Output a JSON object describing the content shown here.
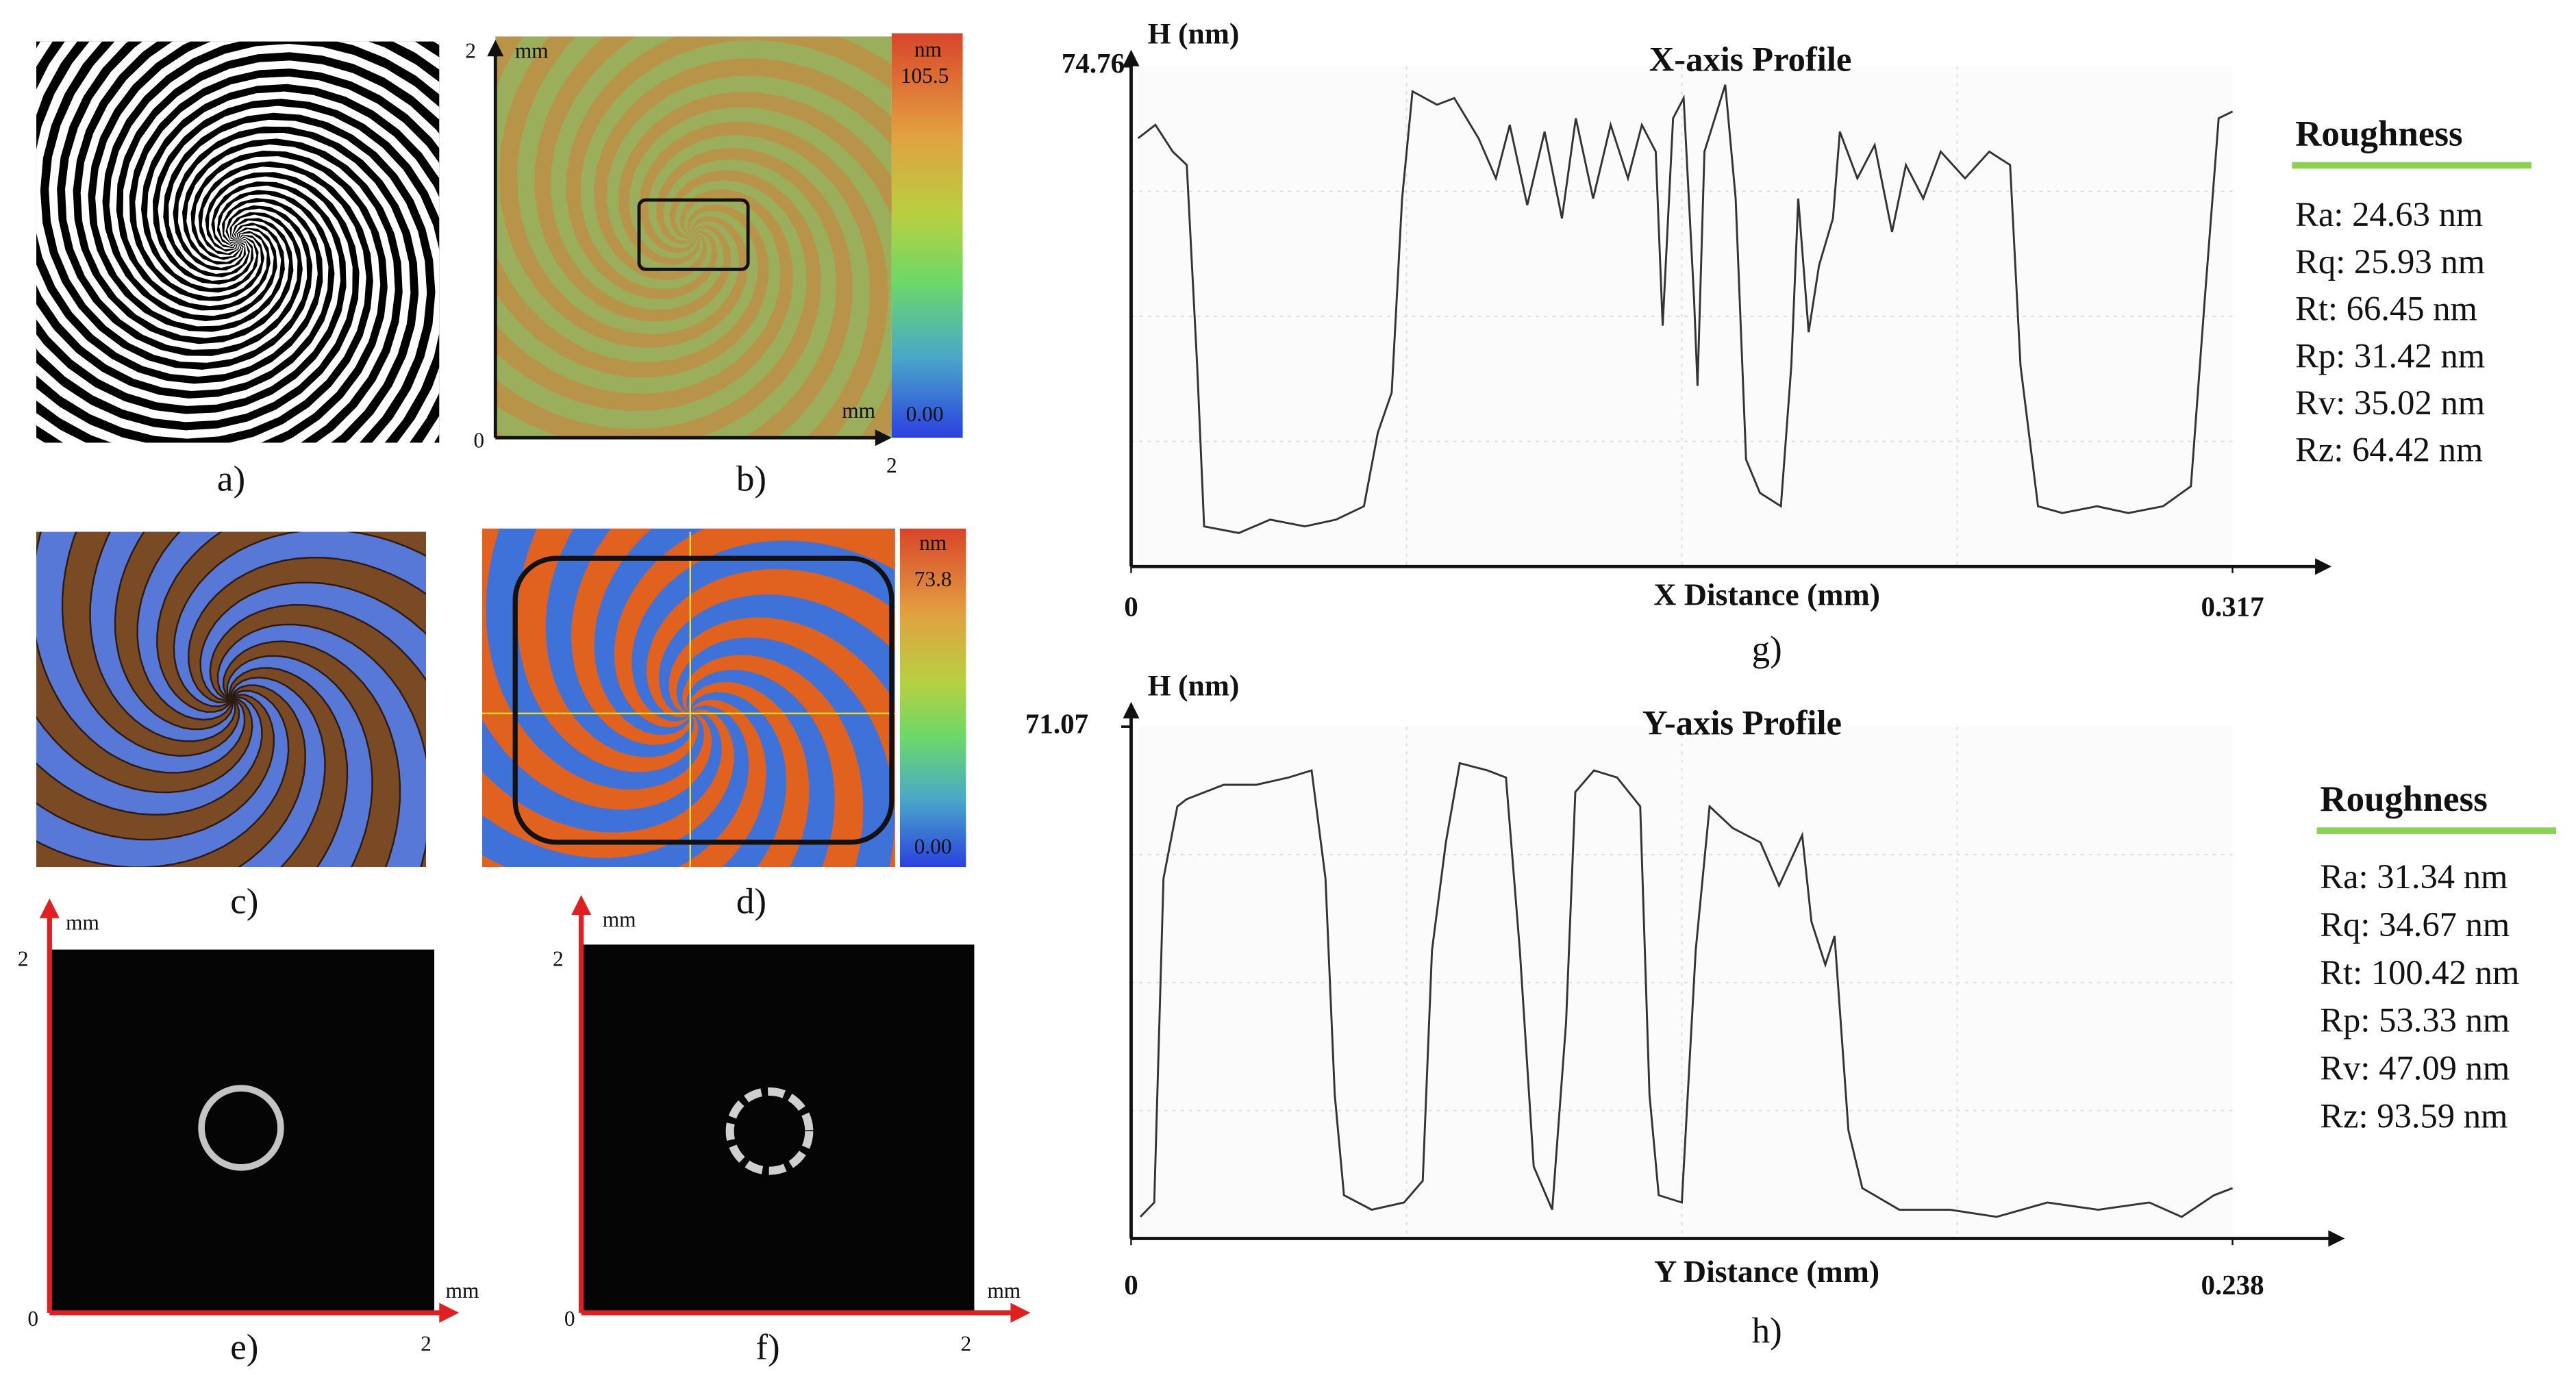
{
  "panels": [
    {
      "label": "a)",
      "texts": []
    },
    {
      "label": "b)",
      "texts": [
        "2",
        "mm",
        "nm",
        "105.5",
        "0.00",
        "mm",
        "0",
        "2"
      ]
    },
    {
      "label": "c)",
      "texts": []
    },
    {
      "label": "d)",
      "texts": [
        "nm",
        "73.8",
        "0.00"
      ]
    },
    {
      "label": "e)",
      "texts": [
        "mm",
        "2",
        "mm",
        "0",
        "2"
      ]
    },
    {
      "label": "f)",
      "texts": [
        "mm",
        "2",
        "mm",
        "0",
        "2"
      ]
    }
  ],
  "chart_data": [
    {
      "type": "line",
      "title": "X-axis Profile",
      "y_label": "H (nm)",
      "x_label": "X Distance (mm)",
      "caption": "g)",
      "color": "#333333",
      "grid": true,
      "xlim": [
        0,
        0.317
      ],
      "xticks": [
        0,
        0.317
      ],
      "ylim": [
        0,
        74.76
      ],
      "yticks": [
        74.76
      ],
      "x": [
        0.002,
        0.007,
        0.012,
        0.016,
        0.019,
        0.021,
        0.031,
        0.04,
        0.05,
        0.059,
        0.067,
        0.071,
        0.075,
        0.078,
        0.081,
        0.088,
        0.093,
        0.1,
        0.105,
        0.109,
        0.114,
        0.119,
        0.124,
        0.128,
        0.133,
        0.138,
        0.143,
        0.147,
        0.151,
        0.153,
        0.156,
        0.159,
        0.162,
        0.163,
        0.165,
        0.171,
        0.174,
        0.177,
        0.181,
        0.187,
        0.19,
        0.192,
        0.195,
        0.198,
        0.202,
        0.204,
        0.209,
        0.214,
        0.219,
        0.223,
        0.228,
        0.233,
        0.24,
        0.247,
        0.253,
        0.256,
        0.261,
        0.268,
        0.278,
        0.287,
        0.297,
        0.305,
        0.309,
        0.313,
        0.317
      ],
      "values": [
        64,
        66,
        62,
        60,
        30,
        6,
        5,
        7,
        6,
        7,
        9,
        20,
        26,
        55,
        71,
        69,
        70,
        64,
        58,
        66,
        54,
        65,
        52,
        67,
        55,
        66,
        58,
        66,
        62,
        36,
        67,
        70,
        40,
        27,
        62,
        72,
        55,
        16,
        11,
        9,
        30,
        55,
        35,
        45,
        52,
        65,
        58,
        63,
        50,
        60,
        55,
        62,
        58,
        62,
        60,
        30,
        9,
        8,
        9,
        8,
        9,
        12,
        40,
        67,
        68
      ],
      "roughness": {
        "title": "Roughness",
        "items": [
          "Ra: 24.63 nm",
          "Rq: 25.93 nm",
          "Rt: 66.45 nm",
          "Rp: 31.42 nm",
          "Rv: 35.02 nm",
          "Rz: 64.42 nm"
        ]
      }
    },
    {
      "type": "line",
      "title": "Y-axis Profile",
      "y_label": "H (nm)",
      "x_label": "Y Distance (mm)",
      "caption": "h)",
      "color": "#333333",
      "grid": true,
      "xlim": [
        0,
        0.238
      ],
      "xticks": [
        0,
        0.238
      ],
      "ylim": [
        0,
        71.07
      ],
      "yticks": [
        71.07
      ],
      "x": [
        0.002,
        0.005,
        0.007,
        0.01,
        0.012,
        0.02,
        0.027,
        0.034,
        0.039,
        0.042,
        0.044,
        0.046,
        0.052,
        0.059,
        0.063,
        0.065,
        0.068,
        0.071,
        0.077,
        0.081,
        0.084,
        0.087,
        0.091,
        0.094,
        0.096,
        0.1,
        0.105,
        0.11,
        0.112,
        0.114,
        0.119,
        0.122,
        0.125,
        0.13,
        0.136,
        0.14,
        0.145,
        0.147,
        0.15,
        0.152,
        0.155,
        0.158,
        0.166,
        0.177,
        0.187,
        0.198,
        0.209,
        0.22,
        0.227,
        0.234,
        0.238
      ],
      "values": [
        3,
        5,
        50,
        60,
        61,
        63,
        63,
        64,
        65,
        50,
        20,
        6,
        4,
        5,
        8,
        40,
        55,
        66,
        65,
        64,
        40,
        10,
        4,
        30,
        62,
        65,
        64,
        60,
        20,
        6,
        5,
        40,
        60,
        57,
        55,
        49,
        56,
        44,
        38,
        42,
        15,
        7,
        4,
        4,
        3,
        5,
        4,
        5,
        3,
        6,
        7
      ],
      "roughness": {
        "title": "Roughness",
        "items": [
          "Ra: 31.34 nm",
          "Rq: 34.67 nm",
          "Rt: 100.42 nm",
          "Rp: 53.33 nm",
          "Rv: 47.09 nm",
          "Rz: 93.59 nm"
        ]
      }
    }
  ]
}
